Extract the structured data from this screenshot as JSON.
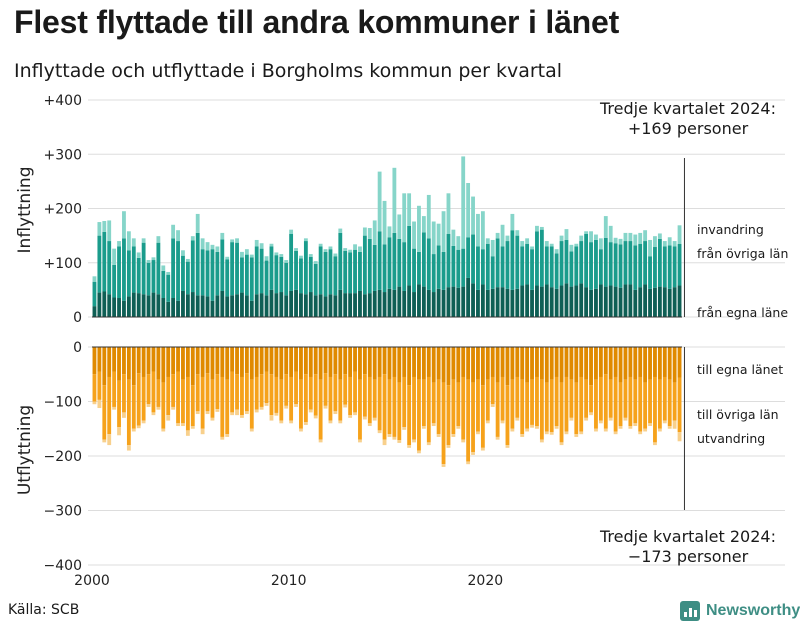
{
  "title": "Flest flyttade till andra kommuner i länet",
  "subtitle": "Inflyttade och utflyttade i Borgholms kommun per kvartal",
  "source": "Källa: SCB",
  "brand": {
    "name": "Newsworthy",
    "icon": "bar-chart-logo-icon"
  },
  "chart_data": [
    {
      "type": "bar",
      "stacked": true,
      "panel": "top",
      "ylabel": "Inflyttning",
      "ylim": [
        0,
        400
      ],
      "yticks": [
        "0",
        "+100",
        "+200",
        "+300",
        "+400"
      ],
      "grid": true,
      "start": "2000 Q1",
      "frequency": "quarter",
      "x_tick_labels": [
        "2000",
        "2010",
        "2020"
      ],
      "callout": {
        "line1": "Tredje kvartalet 2024:",
        "line2": "+169 personer"
      },
      "colors": {
        "från egna läne": "#0e5f55",
        "från övriga län": "#1a9c8c",
        "invandring": "#86d5c9"
      },
      "series": [
        {
          "name": "från egna läne",
          "values": [
            20,
            45,
            47,
            42,
            36,
            35,
            30,
            38,
            45,
            44,
            42,
            40,
            45,
            42,
            35,
            28,
            35,
            30,
            48,
            42,
            46,
            40,
            40,
            38,
            30,
            40,
            48,
            38,
            40,
            42,
            45,
            40,
            30,
            42,
            44,
            40,
            50,
            44,
            46,
            40,
            48,
            50,
            44,
            42,
            46,
            40,
            42,
            38,
            42,
            40,
            50,
            44,
            44,
            44,
            48,
            42,
            44,
            48,
            50,
            46,
            52,
            50,
            56,
            48,
            58,
            46,
            60,
            56,
            50,
            46,
            52,
            50,
            55,
            56,
            54,
            56,
            72,
            62,
            50,
            60,
            50,
            52,
            55,
            55,
            52,
            50,
            52,
            58,
            60,
            50,
            58,
            56,
            60,
            55,
            52,
            58,
            62,
            56,
            58,
            62,
            55,
            50,
            52,
            60,
            56,
            58,
            56,
            54,
            60,
            60,
            50,
            55,
            60,
            52,
            54,
            56,
            55,
            52,
            55,
            58
          ]
        },
        {
          "name": "från övriga län",
          "values": [
            45,
            105,
            110,
            98,
            60,
            95,
            115,
            85,
            85,
            65,
            95,
            60,
            60,
            95,
            50,
            50,
            110,
            110,
            65,
            60,
            95,
            115,
            85,
            85,
            95,
            80,
            95,
            68,
            98,
            95,
            65,
            75,
            80,
            88,
            82,
            64,
            80,
            70,
            65,
            60,
            105,
            72,
            64,
            98,
            65,
            58,
            88,
            82,
            83,
            72,
            105,
            78,
            75,
            80,
            72,
            108,
            100,
            85,
            108,
            88,
            95,
            105,
            88,
            90,
            110,
            80,
            60,
            100,
            95,
            70,
            80,
            70,
            98,
            75,
            70,
            70,
            75,
            90,
            80,
            65,
            85,
            60,
            90,
            75,
            88,
            110,
            98,
            72,
            75,
            75,
            100,
            105,
            70,
            75,
            65,
            82,
            80,
            65,
            72,
            78,
            98,
            88,
            90,
            65,
            90,
            80,
            80,
            80,
            80,
            80,
            82,
            80,
            80,
            60,
            75,
            88,
            75,
            80,
            75,
            77
          ]
        },
        {
          "name": "invandring",
          "values": [
            10,
            25,
            20,
            38,
            30,
            10,
            50,
            35,
            15,
            10,
            8,
            5,
            5,
            12,
            10,
            5,
            25,
            20,
            10,
            5,
            8,
            35,
            20,
            15,
            8,
            10,
            12,
            5,
            5,
            8,
            10,
            10,
            5,
            12,
            10,
            8,
            5,
            5,
            5,
            5,
            8,
            5,
            5,
            5,
            5,
            5,
            5,
            5,
            5,
            5,
            8,
            5,
            5,
            10,
            10,
            15,
            20,
            45,
            110,
            80,
            20,
            120,
            45,
            90,
            60,
            50,
            85,
            30,
            80,
            60,
            40,
            75,
            75,
            30,
            25,
            170,
            100,
            70,
            60,
            70,
            10,
            30,
            10,
            40,
            10,
            30,
            10,
            10,
            10,
            5,
            10,
            5,
            10,
            5,
            8,
            10,
            20,
            12,
            5,
            10,
            5,
            20,
            10,
            20,
            40,
            30,
            10,
            10,
            15,
            15,
            20,
            20,
            20,
            30,
            20,
            10,
            10,
            15,
            10,
            34
          ]
        }
      ]
    },
    {
      "type": "bar",
      "stacked": true,
      "panel": "bottom",
      "ylabel": "Utflyttning",
      "ylim": [
        -400,
        0
      ],
      "yticks": [
        "0",
        "−100",
        "−200",
        "−300",
        "−400"
      ],
      "grid": true,
      "start": "2000 Q1",
      "frequency": "quarter",
      "x_tick_labels": [
        "2000",
        "2010",
        "2020"
      ],
      "callout": {
        "line1": "Tredje kvartalet 2024:",
        "line2": "−173 personer"
      },
      "colors": {
        "till egna länet": "#e08a00",
        "till övriga län": "#f6a21b",
        "utvandring": "#f8d08c"
      },
      "series": [
        {
          "name": "till egna länet",
          "values": [
            -50,
            -45,
            -70,
            -55,
            -45,
            -62,
            -50,
            -60,
            -70,
            -48,
            -55,
            -50,
            -45,
            -60,
            -65,
            -55,
            -50,
            -45,
            -60,
            -55,
            -70,
            -50,
            -55,
            -48,
            -60,
            -50,
            -55,
            -60,
            -45,
            -50,
            -55,
            -48,
            -60,
            -55,
            -50,
            -45,
            -50,
            -55,
            -60,
            -50,
            -55,
            -45,
            -60,
            -50,
            -55,
            -50,
            -60,
            -48,
            -55,
            -50,
            -60,
            -50,
            -55,
            -45,
            -60,
            -50,
            -55,
            -60,
            -55,
            -50,
            -60,
            -55,
            -65,
            -55,
            -70,
            -55,
            -60,
            -60,
            -55,
            -65,
            -60,
            -65,
            -70,
            -60,
            -65,
            -55,
            -60,
            -65,
            -60,
            -70,
            -60,
            -55,
            -65,
            -55,
            -70,
            -60,
            -55,
            -60,
            -65,
            -60,
            -55,
            -60,
            -65,
            -60,
            -55,
            -65,
            -55,
            -60,
            -65,
            -55,
            -60,
            -70,
            -60,
            -55,
            -50,
            -60,
            -55,
            -65,
            -60,
            -55,
            -60,
            -55,
            -65,
            -60,
            -55,
            -60,
            -55,
            -60,
            -65,
            -56
          ]
        },
        {
          "name": "till övriga län",
          "values": [
            -50,
            -52,
            -100,
            -105,
            -65,
            -85,
            -70,
            -120,
            -80,
            -96,
            -80,
            -55,
            -75,
            -50,
            -85,
            -70,
            -60,
            -95,
            -80,
            -98,
            -75,
            -68,
            -95,
            -70,
            -70,
            -64,
            -110,
            -100,
            -75,
            -65,
            -70,
            -70,
            -90,
            -60,
            -60,
            -58,
            -75,
            -66,
            -75,
            -58,
            -80,
            -60,
            -90,
            -88,
            -60,
            -76,
            -110,
            -60,
            -80,
            -68,
            -75,
            -56,
            -70,
            -75,
            -110,
            -78,
            -85,
            -70,
            -98,
            -120,
            -100,
            -110,
            -106,
            -92,
            -110,
            -115,
            -130,
            -85,
            -120,
            -75,
            -100,
            -150,
            -110,
            -100,
            -80,
            -115,
            -150,
            -128,
            -95,
            -115,
            -75,
            -50,
            -100,
            -80,
            -110,
            -90,
            -75,
            -100,
            -85,
            -83,
            -90,
            -110,
            -90,
            -96,
            -90,
            -110,
            -100,
            -70,
            -95,
            -100,
            -70,
            -50,
            -90,
            -80,
            -100,
            -70,
            -100,
            -80,
            -70,
            -90,
            -80,
            -100,
            -85,
            -80,
            -120,
            -90,
            -80,
            -85,
            -70,
            -100
          ]
        },
        {
          "name": "utvandring",
          "values": [
            -5,
            -15,
            -5,
            -20,
            -5,
            -15,
            -10,
            -10,
            -5,
            -5,
            -5,
            -5,
            -5,
            -5,
            -5,
            -10,
            -5,
            -5,
            -5,
            -10,
            -5,
            -5,
            -10,
            -5,
            -5,
            -5,
            -5,
            -5,
            -5,
            -10,
            -5,
            -5,
            -5,
            -5,
            -5,
            -5,
            -10,
            -5,
            -5,
            -5,
            -5,
            -5,
            -5,
            -5,
            -5,
            -5,
            -5,
            -5,
            -5,
            -5,
            -5,
            -5,
            -5,
            -5,
            -5,
            -5,
            -5,
            -5,
            -5,
            -10,
            -5,
            -5,
            -5,
            -5,
            -5,
            -5,
            -5,
            -5,
            -5,
            -5,
            -5,
            -5,
            -5,
            -5,
            -5,
            -5,
            -5,
            -5,
            -5,
            -5,
            -5,
            -5,
            -5,
            -5,
            -5,
            -5,
            -5,
            -5,
            -5,
            -5,
            -5,
            -5,
            -5,
            -5,
            -5,
            -5,
            -5,
            -5,
            -5,
            -5,
            -5,
            -5,
            -5,
            -5,
            -5,
            -5,
            -5,
            -5,
            -5,
            -5,
            -5,
            -5,
            -5,
            -5,
            -5,
            -5,
            -5,
            -5,
            -15,
            -17
          ]
        }
      ]
    }
  ]
}
